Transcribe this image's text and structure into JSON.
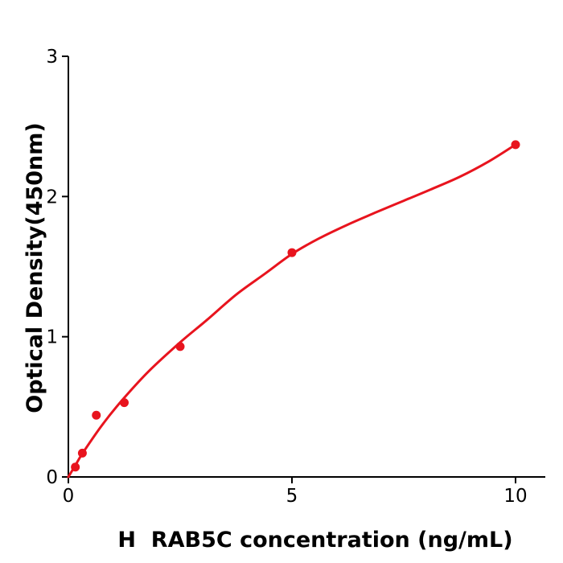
{
  "figure": {
    "background": "#ffffff",
    "axis_color": "#000000",
    "accent_color": "#e8141e"
  },
  "chart_data": {
    "type": "scatter",
    "title": "",
    "xlabel": "H  RAB5C concentration (ng/mL)",
    "ylabel": "Optical Density(450nm)",
    "xlim": [
      0,
      10.65
    ],
    "ylim": [
      0,
      3
    ],
    "x_ticks": [
      0,
      5,
      10
    ],
    "y_ticks": [
      0,
      1,
      2,
      3
    ],
    "x_tick_labels": [
      "0",
      "5",
      "10"
    ],
    "y_tick_labels": [
      "0",
      "1",
      "2",
      "3"
    ],
    "grid": false,
    "legend_position": "none",
    "series": [
      {
        "name": "standard-data-points",
        "kind": "scatter",
        "color": "#e8141e",
        "points": [
          [
            0.156,
            0.07
          ],
          [
            0.313,
            0.17
          ],
          [
            0.625,
            0.44
          ],
          [
            1.25,
            0.53
          ],
          [
            2.5,
            0.93
          ],
          [
            5,
            1.6
          ],
          [
            10,
            2.37
          ]
        ]
      },
      {
        "name": "fit-curve",
        "kind": "line",
        "color": "#e8141e",
        "points": [
          [
            0,
            0.0
          ],
          [
            0.16,
            0.085
          ],
          [
            0.31,
            0.165
          ],
          [
            0.63,
            0.315
          ],
          [
            0.9,
            0.43
          ],
          [
            1.25,
            0.565
          ],
          [
            1.8,
            0.755
          ],
          [
            2.5,
            0.96
          ],
          [
            3.1,
            1.12
          ],
          [
            3.75,
            1.3
          ],
          [
            4.4,
            1.45
          ],
          [
            5.0,
            1.59
          ],
          [
            5.6,
            1.7
          ],
          [
            6.25,
            1.8
          ],
          [
            6.9,
            1.89
          ],
          [
            7.5,
            1.97
          ],
          [
            8.1,
            2.05
          ],
          [
            8.75,
            2.14
          ],
          [
            9.4,
            2.25
          ],
          [
            10,
            2.37
          ]
        ]
      }
    ]
  }
}
